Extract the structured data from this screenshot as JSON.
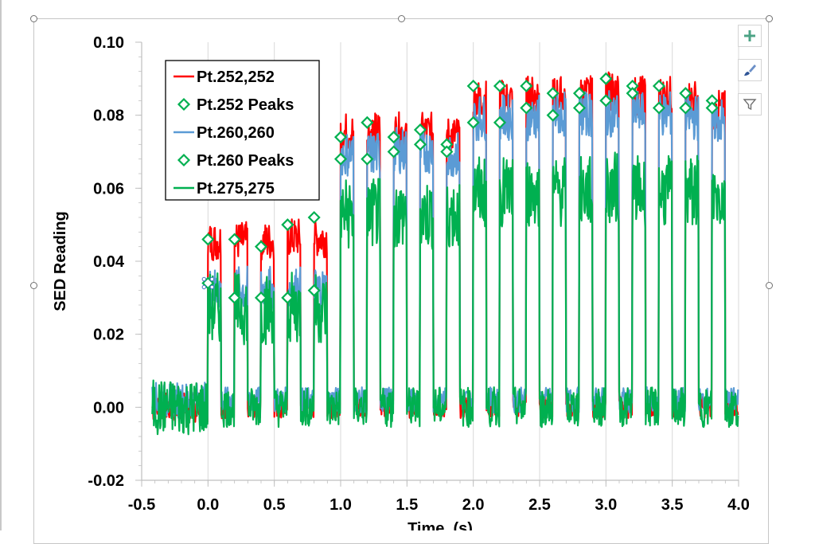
{
  "chart_data": {
    "type": "line",
    "xlabel": "Time, (s)",
    "ylabel": "SED Reading",
    "xlim": [
      -0.5,
      4.0
    ],
    "ylim": [
      -0.02,
      0.1
    ],
    "x_ticks": [
      "-0.5",
      "0.0",
      "0.5",
      "1.0",
      "1.5",
      "2.0",
      "2.5",
      "3.0",
      "3.5",
      "4.0"
    ],
    "y_ticks": [
      "0.10",
      "0.08",
      "0.06",
      "0.04",
      "0.02",
      "0.00",
      "-0.02"
    ],
    "grid": "vertical major gridlines",
    "legend_position": "top-left",
    "pulse_period_s": 0.2,
    "pulse_duty_s": 0.1,
    "pulse_starts_s": [
      0.0,
      0.2,
      0.4,
      0.6,
      0.8,
      1.0,
      1.2,
      1.4,
      1.6,
      1.8,
      2.0,
      2.2,
      2.4,
      2.6,
      2.8,
      3.0,
      3.2,
      3.4,
      3.6,
      3.8
    ],
    "series": [
      {
        "name": "Pt.252,252",
        "color": "#ff0000",
        "style": "line",
        "baseline": 0.0,
        "pulse_levels": [
          0.046,
          0.046,
          0.046,
          0.047,
          0.047,
          0.076,
          0.076,
          0.076,
          0.076,
          0.075,
          0.085,
          0.085,
          0.086,
          0.086,
          0.086,
          0.087,
          0.086,
          0.086,
          0.085,
          0.082
        ]
      },
      {
        "name": "Pt.252 Peaks",
        "color": "#00b050",
        "style": "diamond-marker",
        "x": [
          0.0,
          0.2,
          0.4,
          0.6,
          0.8,
          1.0,
          1.2,
          1.4,
          1.6,
          1.8,
          2.0,
          2.2,
          2.4,
          2.6,
          2.8,
          3.0,
          3.2,
          3.4,
          3.6,
          3.8
        ],
        "y": [
          0.046,
          0.046,
          0.044,
          0.05,
          0.052,
          0.074,
          0.078,
          0.074,
          0.076,
          0.072,
          0.088,
          0.088,
          0.088,
          0.086,
          0.086,
          0.09,
          0.088,
          0.088,
          0.086,
          0.084
        ]
      },
      {
        "name": "Pt.260,260",
        "color": "#5b9bd5",
        "style": "line",
        "baseline": 0.002,
        "pulse_levels": [
          0.033,
          0.033,
          0.033,
          0.033,
          0.033,
          0.07,
          0.07,
          0.071,
          0.071,
          0.07,
          0.08,
          0.08,
          0.08,
          0.081,
          0.081,
          0.081,
          0.081,
          0.081,
          0.08,
          0.079
        ]
      },
      {
        "name": "Pt.260 Peaks",
        "color": "#00b050",
        "style": "diamond-marker",
        "x": [
          0.0,
          0.2,
          0.4,
          0.6,
          0.8,
          1.0,
          1.2,
          1.4,
          1.6,
          1.8,
          2.0,
          2.2,
          2.4,
          2.6,
          2.8,
          3.0,
          3.2,
          3.4,
          3.6,
          3.8
        ],
        "y": [
          0.034,
          0.03,
          0.03,
          0.03,
          0.032,
          0.068,
          0.068,
          0.07,
          0.072,
          0.07,
          0.078,
          0.078,
          0.082,
          0.08,
          0.082,
          0.084,
          0.086,
          0.082,
          0.082,
          0.082
        ]
      },
      {
        "name": "Pt.275,275",
        "color": "#00b050",
        "style": "line",
        "baseline": 0.0,
        "pulse_levels": [
          0.028,
          0.028,
          0.028,
          0.028,
          0.028,
          0.054,
          0.054,
          0.054,
          0.054,
          0.054,
          0.06,
          0.06,
          0.06,
          0.06,
          0.06,
          0.061,
          0.06,
          0.06,
          0.06,
          0.059
        ]
      }
    ]
  },
  "toolbar": {
    "add_element_icon": "plus-icon",
    "styles_icon": "paintbrush-icon",
    "filter_icon": "funnel-icon"
  }
}
